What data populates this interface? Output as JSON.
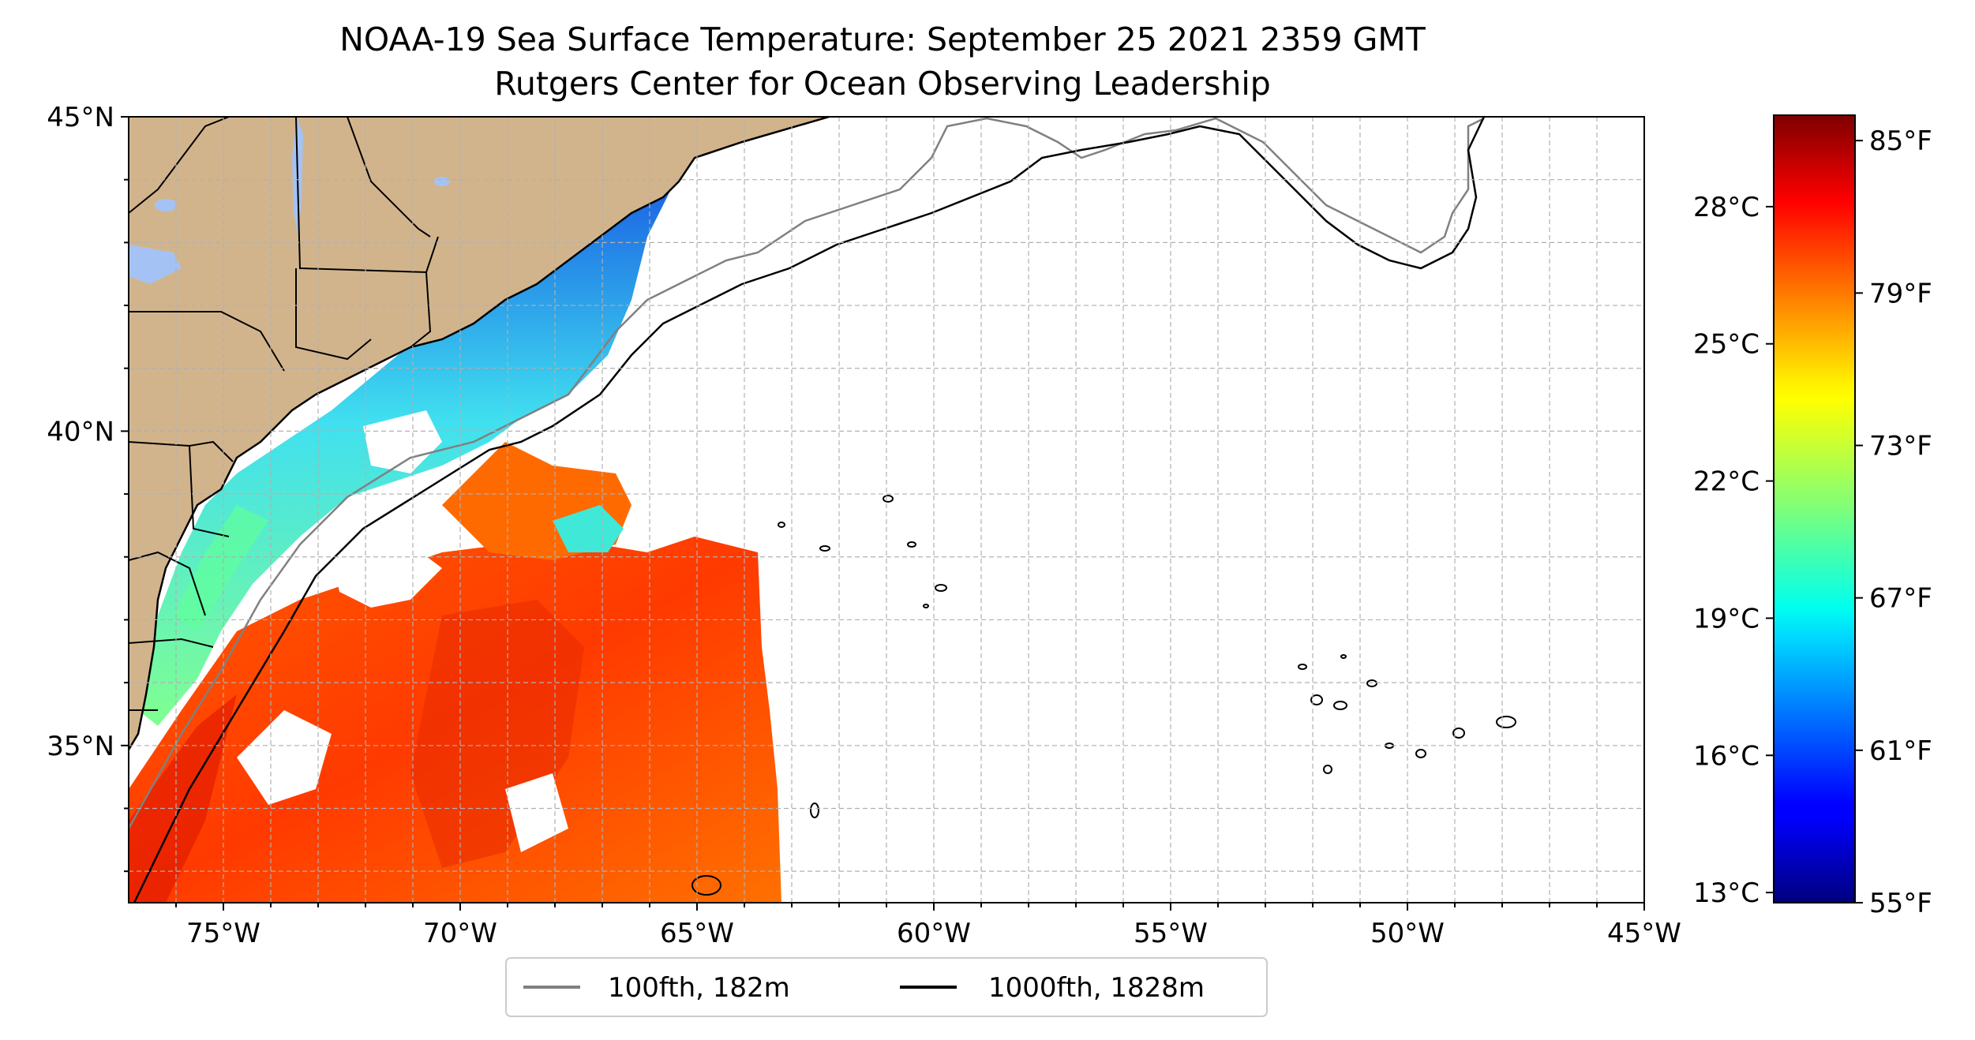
{
  "title": {
    "line1": "NOAA-19 Sea Surface Temperature: September 25 2021 2359 GMT",
    "line2": "Rutgers Center for Ocean Observing Leadership"
  },
  "map": {
    "lon_range": [
      -77,
      -45
    ],
    "lat_range": [
      32.5,
      45
    ],
    "lon_ticks": [
      "75°W",
      "70°W",
      "65°W",
      "60°W",
      "55°W",
      "50°W",
      "45°W"
    ],
    "lat_ticks": [
      "45°N",
      "40°N",
      "35°N"
    ],
    "gridlines": true,
    "land_color": "#d2b48c",
    "lake_color": "#a4c2f4",
    "ocean_color": "#ffffff"
  },
  "legend": {
    "placement": "bottom-center",
    "entries": [
      {
        "label": "100fth, 182m",
        "color": "#808080"
      },
      {
        "label": "1000fth, 1828m",
        "color": "#000000"
      }
    ]
  },
  "colorbar": {
    "colormap": "jet",
    "celsius_ticks": [
      "28°C",
      "25°C",
      "22°C",
      "19°C",
      "16°C",
      "13°C"
    ],
    "fahrenheit_ticks": [
      "85°F",
      "79°F",
      "73°F",
      "67°F",
      "61°F",
      "55°F"
    ],
    "range_f": [
      55,
      86
    ]
  }
}
